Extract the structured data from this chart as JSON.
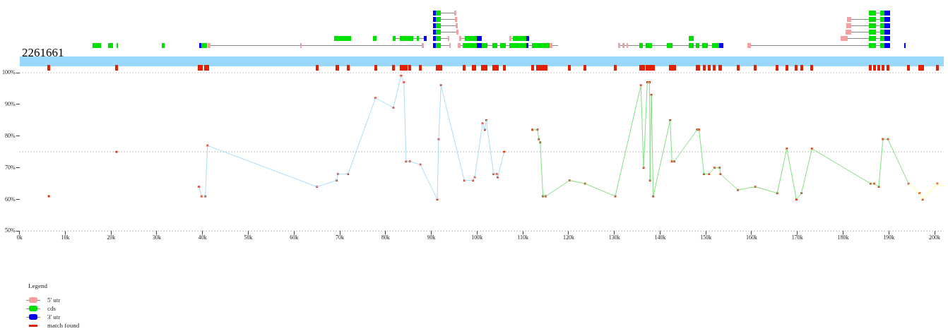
{
  "chart_data": [
    {
      "type": "other",
      "title": "2261661",
      "legend_title": "Legend",
      "legend": "bottom left",
      "series": [
        {
          "name": "5' utr",
          "color": "#f4a0a0"
        },
        {
          "name": "cds",
          "color": "#00e000"
        },
        {
          "name": "3' utr",
          "color": "#0000f0"
        }
      ]
    },
    {
      "type": "line",
      "xlim": [
        0,
        202
      ],
      "ylim": [
        50,
        100
      ],
      "xticks": [
        {
          "value": 0,
          "label": "0k"
        },
        {
          "value": 10,
          "label": "10k"
        },
        {
          "value": 20,
          "label": "20k"
        },
        {
          "value": 30,
          "label": "30k"
        },
        {
          "value": 40,
          "label": "40k"
        },
        {
          "value": 50,
          "label": "50k"
        },
        {
          "value": 60,
          "label": "60k"
        },
        {
          "value": 70,
          "label": "70k"
        },
        {
          "value": 80,
          "label": "80k"
        },
        {
          "value": 90,
          "label": "90k"
        },
        {
          "value": 100,
          "label": "100k"
        },
        {
          "value": 110,
          "label": "110k"
        },
        {
          "value": 120,
          "label": "120k"
        },
        {
          "value": 130,
          "label": "130k"
        },
        {
          "value": 140,
          "label": "140k"
        },
        {
          "value": 150,
          "label": "150k"
        },
        {
          "value": 160,
          "label": "160k"
        },
        {
          "value": 170,
          "label": "170k"
        },
        {
          "value": 180,
          "label": "180k"
        },
        {
          "value": 190,
          "label": "190k"
        },
        {
          "value": 200,
          "label": "200k"
        }
      ],
      "yticks": [
        {
          "value": 50,
          "label": "50%"
        },
        {
          "value": 60,
          "label": "60%"
        },
        {
          "value": 70,
          "label": "70%"
        },
        {
          "value": 80,
          "label": "80%"
        },
        {
          "value": 90,
          "label": "90%"
        },
        {
          "value": 100,
          "label": "100%"
        }
      ],
      "ref_lines": [
        {
          "axis": "y",
          "value": 100,
          "color": "#999999",
          "line_style": "dotted"
        },
        {
          "axis": "y",
          "value": 75,
          "color": "#999999",
          "line_style": "dotted"
        },
        {
          "axis": "y",
          "value": 50,
          "color": "#999999",
          "line_style": "dotted"
        }
      ],
      "series": [
        {
          "type": "line",
          "color": "#a8dcf8",
          "marker": "none",
          "line_style": "solid",
          "x": [
            39.2,
            39.8,
            40.6,
            41.1,
            65,
            69.3,
            69.6,
            71.8,
            77.8,
            81.7,
            83.4,
            84,
            84.5,
            85.3,
            87.6,
            91.3,
            91.6,
            92.1,
            97.2,
            99.1,
            99.5,
            101.2,
            101.7,
            102,
            103.6,
            104.3,
            104.5,
            105.9
          ],
          "values": [
            64,
            61,
            61,
            77,
            64,
            66,
            68,
            68,
            92,
            89,
            99,
            97,
            72,
            72,
            71,
            60,
            79,
            96,
            66,
            66,
            67,
            84,
            82,
            85,
            68,
            68,
            67,
            75
          ]
        },
        {
          "type": "line",
          "color": "#80e080",
          "marker": "none",
          "line_style": "solid",
          "x": [
            112.1,
            113.2,
            113.5,
            113.8,
            114.4,
            115,
            120.2,
            123.6,
            130.2,
            135.8,
            136.4,
            137.2,
            137.7,
            137.8,
            138.1,
            138.5,
            142.2,
            142.6,
            143.1,
            148.1,
            148.5,
            149.6,
            150.7,
            151.9,
            153,
            153.2,
            157,
            160.8,
            165.6,
            167.7,
            169.8,
            170.9,
            173.2,
            186,
            186.8,
            187.8,
            188.7,
            189.8,
            194.3
          ],
          "values": [
            82,
            82,
            79,
            78,
            61,
            61,
            66,
            65,
            61,
            96,
            70,
            97,
            97,
            66,
            93,
            61,
            85,
            72,
            72,
            82,
            82,
            68,
            68,
            70,
            70,
            68,
            63,
            64,
            62,
            76,
            60,
            62,
            76,
            65,
            65,
            64,
            79,
            79,
            65
          ]
        },
        {
          "type": "line",
          "color": "#ffff80",
          "marker": "none",
          "line_style": "solid",
          "x": [
            194.3,
            196.7,
            197.4,
            200.6,
            202
          ],
          "values": [
            65,
            62,
            60,
            65,
            64
          ]
        },
        {
          "type": "scatter",
          "name": "match found",
          "color": "#e02000",
          "marker": "square",
          "x": [
            6.4,
            21.2,
            39.2,
            39.8,
            40.6,
            41.1,
            65,
            69.3,
            69.6,
            71.8,
            77.8,
            81.7,
            83.4,
            84,
            84.5,
            85.3,
            87.6,
            91.3,
            91.6,
            92.1,
            97.2,
            99.1,
            99.5,
            101.2,
            101.7,
            102,
            103.6,
            104.3,
            104.5,
            105.9,
            112.1,
            113.2,
            113.5,
            113.8,
            114.4,
            115,
            120.2,
            123.6,
            130.2,
            135.8,
            136.4,
            137.2,
            137.7,
            137.8,
            138.1,
            138.5,
            142.2,
            142.6,
            143.1,
            148.1,
            148.5,
            149.6,
            150.7,
            151.9,
            153,
            153.2,
            157,
            160.8,
            165.6,
            167.7,
            169.8,
            170.9,
            173.2,
            186,
            186.8,
            187.8,
            188.7,
            189.8,
            194.3,
            196.7,
            197.4,
            200.6
          ],
          "values": [
            61,
            75,
            64,
            61,
            61,
            77,
            64,
            66,
            68,
            68,
            92,
            89,
            99,
            97,
            72,
            72,
            71,
            60,
            79,
            96,
            66,
            66,
            67,
            84,
            82,
            85,
            68,
            68,
            67,
            75,
            82,
            82,
            79,
            78,
            61,
            61,
            66,
            65,
            61,
            96,
            70,
            97,
            97,
            66,
            93,
            61,
            85,
            72,
            72,
            82,
            82,
            68,
            68,
            70,
            70,
            68,
            63,
            64,
            62,
            76,
            60,
            62,
            76,
            65,
            65,
            64,
            79,
            79,
            65,
            62,
            60,
            65
          ]
        }
      ]
    }
  ]
}
